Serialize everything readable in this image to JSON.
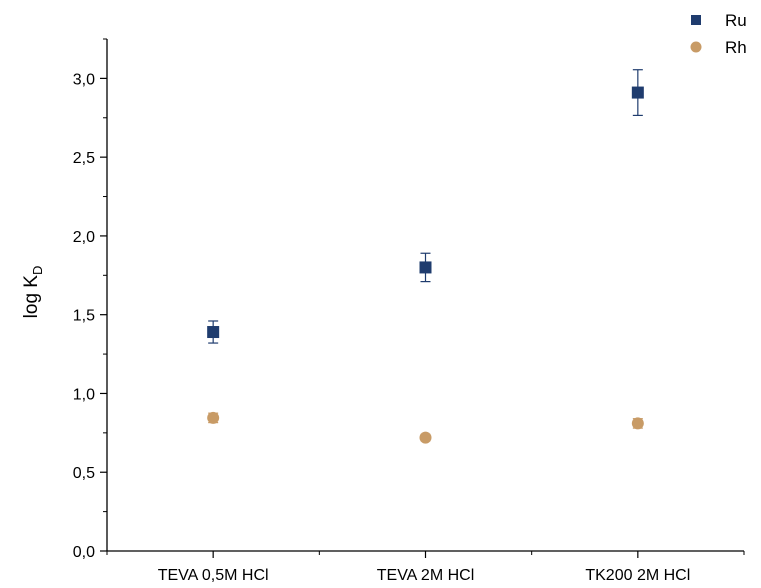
{
  "chart_data": {
    "type": "scatter",
    "categories": [
      "TEVA 0,5M HCl",
      "TEVA 2M HCl",
      "TK200 2M HCl"
    ],
    "ylabel": "log K",
    "ylabel_sub": "D",
    "xlabel": "",
    "title": "",
    "ylim": [
      0.0,
      3.25
    ],
    "yticks": [
      "0,0",
      "0,5",
      "1,0",
      "1,5",
      "2,0",
      "2,5",
      "3,0"
    ],
    "ytick_values": [
      0.0,
      0.5,
      1.0,
      1.5,
      2.0,
      2.5,
      3.0
    ],
    "grid": false,
    "legend_position": "top-right",
    "series": [
      {
        "name": "Ru",
        "marker": "square",
        "color": "#1f3c6e",
        "values": [
          1.39,
          1.8,
          2.91
        ],
        "errors": [
          0.07,
          0.09,
          0.145
        ]
      },
      {
        "name": "Rh",
        "marker": "circle",
        "color": "#c89b66",
        "values": [
          0.845,
          0.72,
          0.81
        ],
        "errors": [
          0.03,
          0.02,
          0.03
        ]
      }
    ]
  }
}
